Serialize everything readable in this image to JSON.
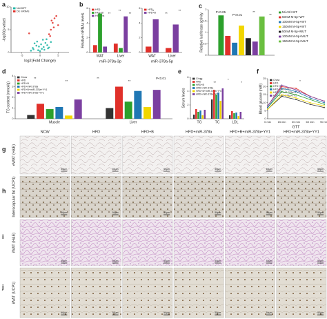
{
  "chart_data": [
    {
      "type": "scatter",
      "label": "a",
      "xlabel": "log2(Fold Change)",
      "ylabel": "-log10(p-value)",
      "xlim": [
        -8,
        8
      ],
      "xticks": [
        -5,
        0,
        5
      ],
      "ylim": [
        0,
        10
      ],
      "yticks": [
        0,
        5,
        10
      ],
      "series": [
        {
          "name": "Not DiFF",
          "color": "#1fb5a6",
          "x": [
            -2,
            -1.5,
            -1,
            -0.5,
            0,
            0.5,
            1,
            1.5,
            2,
            -1.8,
            -0.8,
            0.3,
            1.2,
            2.5,
            3,
            -2.5,
            0.8,
            1.8,
            -0.3,
            2.2
          ],
          "values": [
            1,
            2,
            1.5,
            0.5,
            0.3,
            0.8,
            1.2,
            2.1,
            1.6,
            0.7,
            2.4,
            1.8,
            0.6,
            1.1,
            2.3,
            0.4,
            2.8,
            2.9,
            1.3,
            0.9
          ]
        },
        {
          "name": "DE mRNAs",
          "color": "#e0302a",
          "x": [
            2.5,
            3,
            3.5,
            4,
            2.8,
            3.8,
            4.5,
            5,
            3.2,
            -3
          ],
          "values": [
            4,
            5,
            6.5,
            7.5,
            3.6,
            5.5,
            8,
            6,
            7,
            4.2
          ]
        }
      ]
    },
    {
      "type": "bar",
      "label": "b",
      "ylabel": "Relative mRNAs levels",
      "xlabel": "miR-378a-3p",
      "categories": [
        "WAT",
        "Liver"
      ],
      "ylim": [
        0,
        6
      ],
      "yticks": [
        0,
        2,
        4,
        6
      ],
      "series": [
        {
          "name": "HFD",
          "color": "#e0302a",
          "values": [
            1,
            1.2
          ]
        },
        {
          "name": "HFD+B",
          "color": "#2ca02c",
          "values": [
            5.3,
            0.6
          ]
        },
        {
          "name": "HB+Abs",
          "color": "#7b3fa0",
          "values": [
            0.8,
            4.9
          ]
        }
      ],
      "annotations": [
        "*",
        "**",
        "**",
        "**"
      ]
    },
    {
      "type": "bar",
      "xlabel": "miR-378a-5p",
      "categories": [
        "WAT",
        "Liver"
      ],
      "ylim": [
        0,
        6
      ],
      "yticks": [
        0,
        2,
        4,
        6
      ],
      "series": [
        {
          "name": "HFD",
          "color": "#e0302a",
          "values": [
            0.8,
            0.6
          ]
        },
        {
          "name": "HFD+B",
          "color": "#7b3fa0",
          "values": [
            4.5,
            3.8
          ]
        }
      ],
      "annotations": [
        "**",
        "**",
        "**"
      ]
    },
    {
      "type": "bar",
      "label": "c",
      "ylabel": "Relative luciferase activity",
      "categories": [
        null
      ],
      "ylim": [
        0,
        2
      ],
      "yticks": [
        0,
        0.5,
        1,
        1.5,
        2
      ],
      "legend": "right",
      "series": [
        {
          "name": "Mi-ctrl+WT",
          "color": "#2ca02c",
          "values": [
            1.75
          ]
        },
        {
          "name": "50nM M-5p+WT",
          "color": "#e0302a",
          "values": [
            0.85
          ]
        },
        {
          "name": "100nM M-5p+WT",
          "color": "#1f77b4",
          "values": [
            0.55
          ]
        },
        {
          "name": "150nM M-5p+WT",
          "color": "#f2d600",
          "values": [
            1.3
          ]
        },
        {
          "name": "50nM M-5p+MUT",
          "color": "#222222",
          "values": [
            0.75
          ]
        },
        {
          "name": "100nM M-5p+MUT",
          "color": "#7b3fa0",
          "values": [
            0.6
          ]
        },
        {
          "name": "150nM M-5p+MUT",
          "color": "#6abf40",
          "values": [
            1.7
          ]
        }
      ],
      "annotations": [
        "P<0.05",
        "P<0.01",
        "**",
        "**"
      ]
    },
    {
      "type": "bar",
      "label": "d",
      "ylabel": "TG content (mmol/g)",
      "categories": [
        "Muscle",
        "Liver"
      ],
      "ylim": [
        0,
        4
      ],
      "yticks": [
        0,
        1,
        2,
        3,
        4
      ],
      "series": [
        {
          "name": "Chow",
          "color": "#333333",
          "values": [
            0.35,
            1.0
          ]
        },
        {
          "name": "HFD",
          "color": "#e0302a",
          "values": [
            1.4,
            3.0
          ]
        },
        {
          "name": "HFD+B",
          "color": "#2ca02c",
          "values": [
            0.9,
            1.6
          ]
        },
        {
          "name": "HFD+miR-378a",
          "color": "#1f77b4",
          "values": [
            1.1,
            2.6
          ]
        },
        {
          "name": "HFD+B+miR-378a+YY1",
          "color": "#f2d600",
          "values": [
            0.3,
            1.1
          ]
        },
        {
          "name": "HFD+miR-378a+YY1",
          "color": "#7b3fa0",
          "values": [
            1.8,
            2.7
          ]
        }
      ],
      "annotations": [
        "**",
        "**",
        "**",
        "**",
        "P<0.01"
      ]
    },
    {
      "type": "bar",
      "label": "e",
      "ylabel": "Serum levels",
      "categories": [
        "TG",
        "TC",
        "LDL"
      ],
      "ylim": [
        0,
        6
      ],
      "yticks": [
        0,
        2,
        4,
        6
      ],
      "series": [
        {
          "name": "Chow",
          "color": "#333333",
          "values": [
            0.6,
            2.8,
            0.5
          ]
        },
        {
          "name": "HFD",
          "color": "#e0302a",
          "values": [
            1.4,
            4.2,
            1.1
          ]
        },
        {
          "name": "HFD+B",
          "color": "#2ca02c",
          "values": [
            1.0,
            3.5,
            0.8
          ]
        },
        {
          "name": "HFD+miR-378a",
          "color": "#1f77b4",
          "values": [
            1.2,
            3.8,
            0.9
          ]
        },
        {
          "name": "HFD+B+miR-378a+YY1",
          "color": "#f2d600",
          "values": [
            0.5,
            2.6,
            0.4
          ]
        },
        {
          "name": "HFD+miR-378a+YY1",
          "color": "#7b3fa0",
          "values": [
            1.3,
            4.4,
            1.0
          ]
        }
      ],
      "annotations": [
        "**",
        "**",
        "*",
        "*"
      ]
    },
    {
      "type": "line",
      "label": "f",
      "ylabel": "Blood glucose (mM)",
      "xlabel": "GTT",
      "categories": [
        "0 min",
        "15 min",
        "30 min",
        "60 min",
        "90 min"
      ],
      "ylim": [
        0,
        25
      ],
      "yticks": [
        0,
        5,
        10,
        15,
        20,
        25
      ],
      "series": [
        {
          "name": "Chow",
          "color": "#333333",
          "values": [
            6,
            14,
            12,
            9,
            7
          ]
        },
        {
          "name": "HFD",
          "color": "#e0302a",
          "values": [
            8,
            20,
            19,
            14,
            11
          ]
        },
        {
          "name": "HFD+B",
          "color": "#2ca02c",
          "values": [
            7,
            17,
            15,
            12,
            9
          ]
        },
        {
          "name": "HFD+miR-378a",
          "color": "#1f77b4",
          "values": [
            7,
            19,
            17,
            13,
            10
          ]
        },
        {
          "name": "HFD+B+miR-378a+YY1",
          "color": "#f2d600",
          "values": [
            6,
            15,
            13,
            10,
            8
          ]
        },
        {
          "name": "HFD+miR-378a+YY1",
          "color": "#7b3fa0",
          "values": [
            8,
            21,
            18,
            14,
            11
          ]
        }
      ],
      "annotations": [
        "*"
      ]
    }
  ],
  "image_grid": {
    "columns": [
      "NCW",
      "HFD",
      "HFD+B",
      "HFD+miR-378a",
      "HFD+B+miR-378a+YY1",
      "HFD+miR-378a+YY1"
    ],
    "rows": [
      {
        "panel": "g",
        "label": "eWAT (H&E)",
        "scale_bar": "50μm"
      },
      {
        "panel": "h",
        "label": "Interscapular fat (UCP1)",
        "scale_bar": "50μm"
      },
      {
        "panel": "i",
        "label": "iWAT (H&E)",
        "scale_bar": "50μm"
      },
      {
        "panel": "j",
        "label": "iWAT (UCP1)",
        "scale_bar": "50μm"
      }
    ]
  }
}
